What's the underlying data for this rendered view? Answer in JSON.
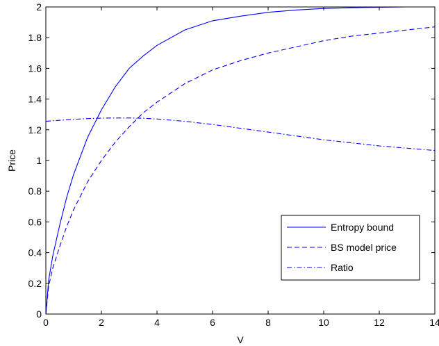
{
  "chart_data": {
    "type": "line",
    "title": "",
    "xlabel": "V",
    "ylabel": "Price",
    "xlim": [
      0,
      14
    ],
    "ylim": [
      0,
      2
    ],
    "x_ticks": [
      "0",
      "2",
      "4",
      "6",
      "8",
      "10",
      "12",
      "14"
    ],
    "y_ticks": [
      "0",
      "0.2",
      "0.4",
      "0.6",
      "0.8",
      "1",
      "1.2",
      "1.4",
      "1.6",
      "1.8",
      "2"
    ],
    "grid": false,
    "legend_position": "bottom-right",
    "line_color": "#0000ff",
    "series": [
      {
        "name": "Entropy bound",
        "style": "solid",
        "x": [
          0,
          0.1,
          0.25,
          0.5,
          0.75,
          1,
          1.5,
          2,
          2.5,
          3,
          3.5,
          4,
          5,
          6,
          7,
          8,
          9,
          10,
          11,
          12,
          13,
          14
        ],
        "y": [
          0,
          0.22,
          0.38,
          0.58,
          0.76,
          0.91,
          1.15,
          1.33,
          1.48,
          1.6,
          1.68,
          1.75,
          1.85,
          1.91,
          1.94,
          1.965,
          1.98,
          1.99,
          1.995,
          1.998,
          2.0,
          2.0
        ]
      },
      {
        "name": "BS model price",
        "style": "dashed",
        "x": [
          0,
          0.1,
          0.25,
          0.5,
          0.75,
          1,
          1.5,
          2,
          2.5,
          3,
          3.5,
          4,
          5,
          6,
          7,
          8,
          9,
          10,
          11,
          12,
          13,
          14
        ],
        "y": [
          0,
          0.18,
          0.3,
          0.44,
          0.57,
          0.68,
          0.86,
          1.0,
          1.12,
          1.22,
          1.31,
          1.38,
          1.5,
          1.59,
          1.65,
          1.7,
          1.74,
          1.78,
          1.81,
          1.83,
          1.85,
          1.87
        ]
      },
      {
        "name": "Ratio",
        "style": "dashdot",
        "x": [
          0,
          0.5,
          1,
          1.5,
          2,
          2.5,
          3,
          3.5,
          4,
          5,
          6,
          7,
          8,
          9,
          10,
          11,
          12,
          13,
          14
        ],
        "y": [
          1.255,
          1.262,
          1.268,
          1.273,
          1.276,
          1.277,
          1.277,
          1.275,
          1.27,
          1.255,
          1.235,
          1.21,
          1.185,
          1.16,
          1.135,
          1.115,
          1.095,
          1.08,
          1.065
        ]
      }
    ]
  }
}
